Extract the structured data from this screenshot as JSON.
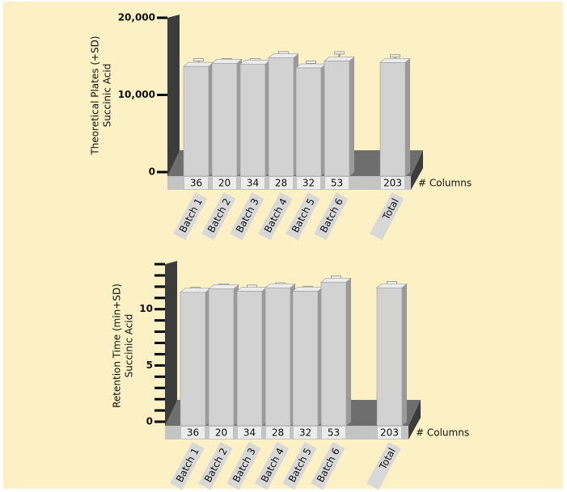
{
  "chart_data": [
    {
      "type": "bar",
      "y_label": [
        "Theoretical Plates (+SD)",
        "Succinic Acid"
      ],
      "categories": [
        "Batch 1",
        "Batch 2",
        "Batch 3",
        "Batch 4",
        "Batch 5",
        "Batch 6",
        "Total"
      ],
      "values": [
        13700,
        14100,
        14000,
        14800,
        13500,
        14400,
        14200
      ],
      "errors": [
        800,
        400,
        500,
        600,
        700,
        1000,
        800
      ],
      "column_counts": [
        36,
        20,
        34,
        28,
        32,
        53,
        203
      ],
      "column_counts_label": "# Columns",
      "ylim": [
        0,
        20000
      ],
      "yticks": [
        0,
        {
          "value": 10000,
          "label": "10,000"
        },
        {
          "value": 20000,
          "label": "20,000"
        }
      ],
      "color": "#d2d2d2"
    },
    {
      "type": "bar",
      "y_label": [
        "Retention Time (min+SD)",
        "Succinic Acid"
      ],
      "categories": [
        "Batch 1",
        "Batch 2",
        "Batch 3",
        "Batch 4",
        "Batch 5",
        "Batch 6",
        "Total"
      ],
      "values": [
        11.5,
        11.8,
        11.6,
        11.9,
        11.6,
        12.4,
        11.9
      ],
      "errors": [
        0.3,
        0.3,
        0.4,
        0.3,
        0.3,
        0.4,
        0.4
      ],
      "column_counts": [
        36,
        20,
        34,
        28,
        32,
        53,
        203
      ],
      "column_counts_label": "# Columns",
      "ylim": [
        0,
        14
      ],
      "yticks": [
        0,
        5,
        10
      ],
      "yminorticks": [
        1,
        2,
        3,
        4,
        6,
        7,
        8,
        9,
        11,
        12,
        13,
        14
      ],
      "color": "#d2d2d2"
    }
  ]
}
